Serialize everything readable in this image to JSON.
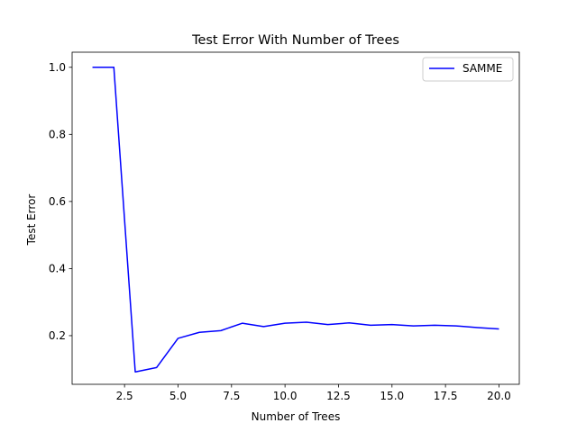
{
  "chart_data": {
    "type": "line",
    "title": "Test Error With Number of Trees",
    "xlabel": "Number of Trees",
    "ylabel": "Test Error",
    "xlim": [
      0.05,
      20.95
    ],
    "ylim": [
      0.055,
      1.045
    ],
    "xticks": [
      2.5,
      5.0,
      7.5,
      10.0,
      12.5,
      15.0,
      17.5,
      20.0
    ],
    "xtick_labels": [
      "2.5",
      "5.0",
      "7.5",
      "10.0",
      "12.5",
      "15.0",
      "17.5",
      "20.0"
    ],
    "yticks": [
      0.2,
      0.4,
      0.6,
      0.8,
      1.0
    ],
    "ytick_labels": [
      "0.2",
      "0.4",
      "0.6",
      "0.8",
      "1.0"
    ],
    "grid": false,
    "legend_position": "top-right",
    "x": [
      1,
      2,
      3,
      4,
      5,
      6,
      7,
      8,
      9,
      10,
      11,
      12,
      13,
      14,
      15,
      16,
      17,
      18,
      19,
      20
    ],
    "series": [
      {
        "name": "SAMME",
        "color": "#0000ff",
        "values": [
          1.0,
          1.0,
          0.092,
          0.105,
          0.192,
          0.21,
          0.215,
          0.237,
          0.227,
          0.237,
          0.24,
          0.233,
          0.238,
          0.231,
          0.233,
          0.229,
          0.231,
          0.229,
          0.224,
          0.22
        ]
      }
    ]
  }
}
